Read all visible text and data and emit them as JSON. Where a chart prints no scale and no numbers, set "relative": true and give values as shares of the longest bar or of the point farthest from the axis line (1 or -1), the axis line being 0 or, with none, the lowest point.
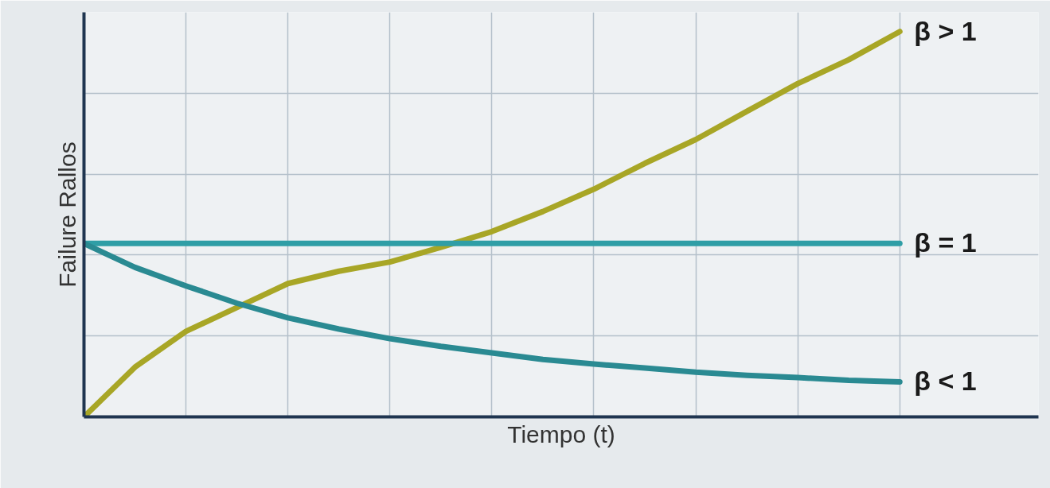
{
  "chart_data": {
    "type": "line",
    "relative": true,
    "xlabel": "Tiempo (t)",
    "ylabel": "Failure Rallos",
    "grid": true,
    "legend": false,
    "marker": "none",
    "line_style": "solid",
    "categories": [
      null,
      null,
      null,
      null,
      null,
      null,
      null,
      null,
      null,
      null,
      null,
      null,
      null,
      null,
      null,
      null,
      null
    ],
    "series": [
      {
        "name": "β > 1",
        "color": "#a8a626",
        "values": [
          0,
          0.129,
          0.222,
          0.284,
          0.346,
          0.378,
          0.402,
          0.44,
          0.481,
          0.533,
          0.591,
          0.658,
          0.72,
          0.793,
          0.865,
          0.927,
          1.0
        ]
      },
      {
        "name": "β = 1",
        "color": "#2f9ea6",
        "values": [
          0.45,
          0.45,
          0.45,
          0.45,
          0.45,
          0.45,
          0.45,
          0.45,
          0.45,
          0.45,
          0.45,
          0.45,
          0.45,
          0.45,
          0.45,
          0.45,
          0.45
        ]
      },
      {
        "name": "β < 1",
        "color": "#2a8a92",
        "values": [
          0.45,
          0.388,
          0.34,
          0.295,
          0.257,
          0.228,
          0.203,
          0.183,
          0.166,
          0.149,
          0.137,
          0.127,
          0.116,
          0.108,
          0.102,
          0.095,
          0.091
        ]
      }
    ]
  }
}
